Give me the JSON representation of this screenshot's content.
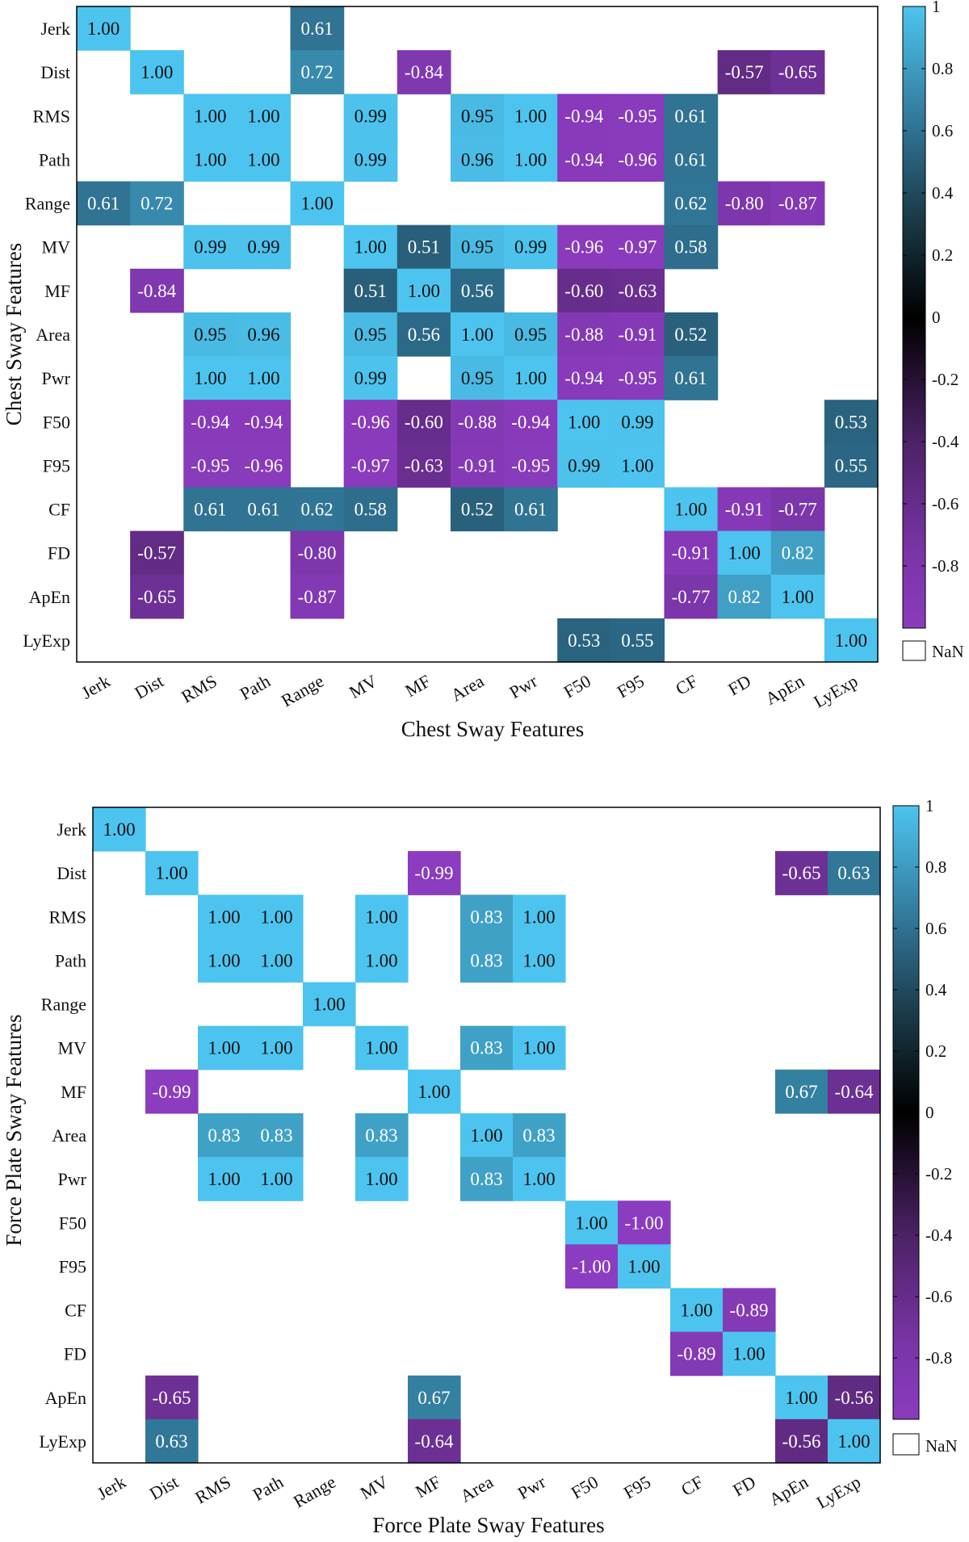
{
  "colors": {
    "positive_high": "#4cc3ee",
    "zero": "#000000",
    "negative_high": "#7f38ae",
    "background": "#ffffff",
    "frame": "#000000"
  },
  "chart_data": [
    {
      "type": "heatmap",
      "title": "",
      "xlabel": "Chest Sway Features",
      "ylabel": "Chest Sway Features",
      "x": [
        "Jerk",
        "Dist",
        "RMS",
        "Path",
        "Range",
        "MV",
        "MF",
        "Area",
        "Pwr",
        "F50",
        "F95",
        "CF",
        "FD",
        "ApEn",
        "LyExp"
      ],
      "y": [
        "Jerk",
        "Dist",
        "RMS",
        "Path",
        "Range",
        "MV",
        "MF",
        "Area",
        "Pwr",
        "F50",
        "F95",
        "CF",
        "FD",
        "ApEn",
        "LyExp"
      ],
      "clim": [
        -1,
        1
      ],
      "colorbar": {
        "ticks": [
          "1",
          "0.8",
          "0.6",
          "0.4",
          "0.2",
          "0",
          "-0.2",
          "-0.4",
          "-0.6",
          "-0.8"
        ],
        "nan_label": "NaN"
      },
      "values": [
        [
          1.0,
          null,
          null,
          null,
          0.61,
          null,
          null,
          null,
          null,
          null,
          null,
          null,
          null,
          null,
          null
        ],
        [
          null,
          1.0,
          null,
          null,
          0.72,
          null,
          -0.84,
          null,
          null,
          null,
          null,
          null,
          -0.57,
          -0.65,
          null
        ],
        [
          null,
          null,
          1.0,
          1.0,
          null,
          0.99,
          null,
          0.95,
          1.0,
          -0.94,
          -0.95,
          0.61,
          null,
          null,
          null
        ],
        [
          null,
          null,
          1.0,
          1.0,
          null,
          0.99,
          null,
          0.96,
          1.0,
          -0.94,
          -0.96,
          0.61,
          null,
          null,
          null
        ],
        [
          0.61,
          0.72,
          null,
          null,
          1.0,
          null,
          null,
          null,
          null,
          null,
          null,
          0.62,
          -0.8,
          -0.87,
          null
        ],
        [
          null,
          null,
          0.99,
          0.99,
          null,
          1.0,
          0.51,
          0.95,
          0.99,
          -0.96,
          -0.97,
          0.58,
          null,
          null,
          null
        ],
        [
          null,
          -0.84,
          null,
          null,
          null,
          0.51,
          1.0,
          0.56,
          null,
          -0.6,
          -0.63,
          null,
          null,
          null,
          null
        ],
        [
          null,
          null,
          0.95,
          0.96,
          null,
          0.95,
          0.56,
          1.0,
          0.95,
          -0.88,
          -0.91,
          0.52,
          null,
          null,
          null
        ],
        [
          null,
          null,
          1.0,
          1.0,
          null,
          0.99,
          null,
          0.95,
          1.0,
          -0.94,
          -0.95,
          0.61,
          null,
          null,
          null
        ],
        [
          null,
          null,
          -0.94,
          -0.94,
          null,
          -0.96,
          -0.6,
          -0.88,
          -0.94,
          1.0,
          0.99,
          null,
          null,
          null,
          0.53
        ],
        [
          null,
          null,
          -0.95,
          -0.96,
          null,
          -0.97,
          -0.63,
          -0.91,
          -0.95,
          0.99,
          1.0,
          null,
          null,
          null,
          0.55
        ],
        [
          null,
          null,
          0.61,
          0.61,
          0.62,
          0.58,
          null,
          0.52,
          0.61,
          null,
          null,
          1.0,
          -0.91,
          -0.77,
          null
        ],
        [
          null,
          -0.57,
          null,
          null,
          -0.8,
          null,
          null,
          null,
          null,
          null,
          null,
          -0.91,
          1.0,
          0.82,
          null
        ],
        [
          null,
          -0.65,
          null,
          null,
          -0.87,
          null,
          null,
          null,
          null,
          null,
          null,
          -0.77,
          0.82,
          1.0,
          null
        ],
        [
          null,
          null,
          null,
          null,
          null,
          null,
          null,
          null,
          null,
          0.53,
          0.55,
          null,
          null,
          null,
          1.0
        ]
      ]
    },
    {
      "type": "heatmap",
      "title": "",
      "xlabel": "Force Plate Sway Features",
      "ylabel": "Force Plate Sway Features",
      "x": [
        "Jerk",
        "Dist",
        "RMS",
        "Path",
        "Range",
        "MV",
        "MF",
        "Area",
        "Pwr",
        "F50",
        "F95",
        "CF",
        "FD",
        "ApEn",
        "LyExp"
      ],
      "y": [
        "Jerk",
        "Dist",
        "RMS",
        "Path",
        "Range",
        "MV",
        "MF",
        "Area",
        "Pwr",
        "F50",
        "F95",
        "CF",
        "FD",
        "ApEn",
        "LyExp"
      ],
      "clim": [
        -1,
        1
      ],
      "colorbar": {
        "ticks": [
          "1",
          "0.8",
          "0.6",
          "0.4",
          "0.2",
          "0",
          "-0.2",
          "-0.4",
          "-0.6",
          "-0.8"
        ],
        "nan_label": "NaN"
      },
      "values": [
        [
          1.0,
          null,
          null,
          null,
          null,
          null,
          null,
          null,
          null,
          null,
          null,
          null,
          null,
          null,
          null
        ],
        [
          null,
          1.0,
          null,
          null,
          null,
          null,
          -0.99,
          null,
          null,
          null,
          null,
          null,
          null,
          -0.65,
          0.63
        ],
        [
          null,
          null,
          1.0,
          1.0,
          null,
          1.0,
          null,
          0.83,
          1.0,
          null,
          null,
          null,
          null,
          null,
          null
        ],
        [
          null,
          null,
          1.0,
          1.0,
          null,
          1.0,
          null,
          0.83,
          1.0,
          null,
          null,
          null,
          null,
          null,
          null
        ],
        [
          null,
          null,
          null,
          null,
          1.0,
          null,
          null,
          null,
          null,
          null,
          null,
          null,
          null,
          null,
          null
        ],
        [
          null,
          null,
          1.0,
          1.0,
          null,
          1.0,
          null,
          0.83,
          1.0,
          null,
          null,
          null,
          null,
          null,
          null
        ],
        [
          null,
          -0.99,
          null,
          null,
          null,
          null,
          1.0,
          null,
          null,
          null,
          null,
          null,
          null,
          0.67,
          -0.64
        ],
        [
          null,
          null,
          0.83,
          0.83,
          null,
          0.83,
          null,
          1.0,
          0.83,
          null,
          null,
          null,
          null,
          null,
          null
        ],
        [
          null,
          null,
          1.0,
          1.0,
          null,
          1.0,
          null,
          0.83,
          1.0,
          null,
          null,
          null,
          null,
          null,
          null
        ],
        [
          null,
          null,
          null,
          null,
          null,
          null,
          null,
          null,
          null,
          1.0,
          -1.0,
          null,
          null,
          null,
          null
        ],
        [
          null,
          null,
          null,
          null,
          null,
          null,
          null,
          null,
          null,
          -1.0,
          1.0,
          null,
          null,
          null,
          null
        ],
        [
          null,
          null,
          null,
          null,
          null,
          null,
          null,
          null,
          null,
          null,
          null,
          1.0,
          -0.89,
          null,
          null
        ],
        [
          null,
          null,
          null,
          null,
          null,
          null,
          null,
          null,
          null,
          null,
          null,
          -0.89,
          1.0,
          null,
          null
        ],
        [
          null,
          -0.65,
          null,
          null,
          null,
          null,
          0.67,
          null,
          null,
          null,
          null,
          null,
          null,
          1.0,
          -0.56
        ],
        [
          null,
          0.63,
          null,
          null,
          null,
          null,
          -0.64,
          null,
          null,
          null,
          null,
          null,
          null,
          -0.56,
          1.0
        ]
      ]
    }
  ]
}
